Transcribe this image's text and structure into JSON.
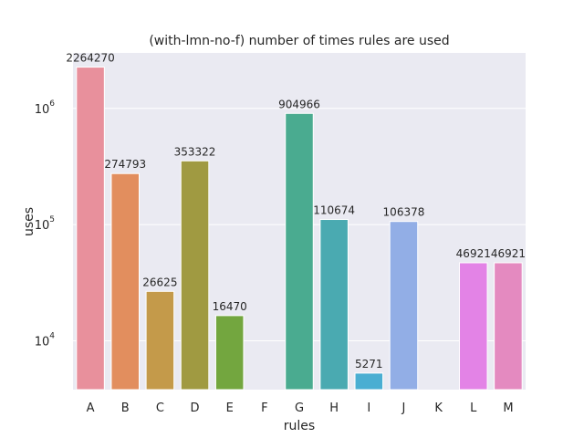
{
  "chart_data": {
    "type": "bar",
    "title": "(with-lmn-no-f) number of times rules are used",
    "xlabel": "rules",
    "ylabel": "uses",
    "y_scale": "log",
    "ylim": [
      3800,
      3000000
    ],
    "y_ticks": [
      {
        "value": 10000,
        "base": "10",
        "exp": "4"
      },
      {
        "value": 100000,
        "base": "10",
        "exp": "5"
      },
      {
        "value": 1000000,
        "base": "10",
        "exp": "6"
      }
    ],
    "grid": true,
    "categories": [
      "A",
      "B",
      "C",
      "D",
      "E",
      "F",
      "G",
      "H",
      "I",
      "J",
      "K",
      "L",
      "M"
    ],
    "values": [
      2264270,
      274793,
      26625,
      353322,
      16470,
      null,
      904966,
      110674,
      5271,
      106378,
      null,
      46921,
      46921
    ],
    "data_labels": [
      "2264270",
      "274793",
      "26625",
      "353322",
      "16470",
      "",
      "904966",
      "110674",
      "5271",
      "106378",
      "",
      "46921",
      "46921"
    ],
    "colors": [
      "#e8909c",
      "#e28e5e",
      "#c49a4a",
      "#a09a41",
      "#73a63f",
      "#5aab62",
      "#4aab90",
      "#4aaab1",
      "#4aaed2",
      "#92aee6",
      "#c99be6",
      "#e383e6",
      "#e48ac0"
    ]
  }
}
